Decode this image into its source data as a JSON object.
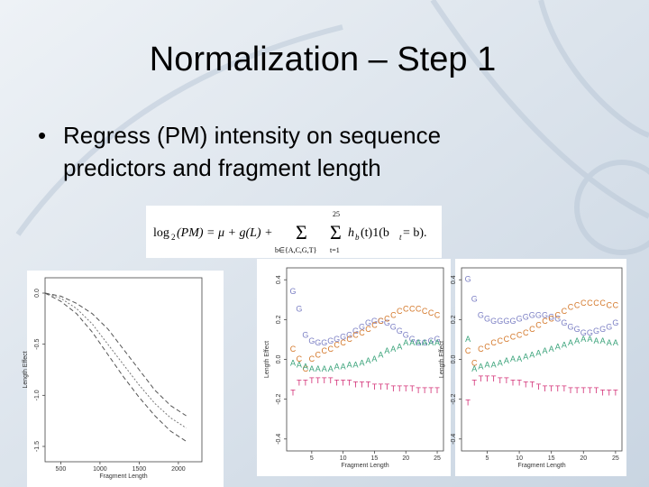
{
  "slide": {
    "title": "Normalization – Step 1",
    "bullet": "•",
    "bullet_lines": [
      "Regress (PM) intensity on sequence",
      "predictors and fragment length"
    ]
  },
  "formula": {
    "parts": [
      "log",
      "2",
      "(PM) = μ + g(L) +",
      "Σ",
      "b∈{A,C,G,T}",
      "Σ",
      "t=1",
      "25",
      "h",
      "b",
      "(t)1(b",
      "t",
      " = b)."
    ]
  },
  "chart_data": [
    {
      "type": "line",
      "x_label": "Fragment Length",
      "y_label": "Length Effect",
      "x": [
        300,
        500,
        700,
        900,
        1100,
        1300,
        1500,
        1700,
        1900,
        2100
      ],
      "xlim": [
        300,
        2300
      ],
      "ylim": [
        -1.65,
        0.15
      ],
      "xticks": [
        500,
        1000,
        1500,
        2000
      ],
      "yticks": [
        {
          "value": 0,
          "label": "0.0"
        },
        {
          "value": -0.5,
          "label": "-0.5"
        },
        {
          "value": -1,
          "label": "-1.0"
        },
        {
          "value": -1.5,
          "label": "-1.5"
        }
      ],
      "series": [
        {
          "color": "#555555",
          "values": [
            0,
            -0.03,
            -0.1,
            -0.2,
            -0.35,
            -0.55,
            -0.75,
            -0.95,
            -1.1,
            -1.2
          ]
        },
        {
          "color": "#777777",
          "values": [
            0,
            -0.05,
            -0.15,
            -0.3,
            -0.5,
            -0.7,
            -0.9,
            -1.08,
            -1.22,
            -1.32
          ]
        },
        {
          "color": "#555555",
          "values": [
            0,
            -0.08,
            -0.2,
            -0.38,
            -0.6,
            -0.82,
            -1.02,
            -1.2,
            -1.35,
            -1.45
          ]
        }
      ]
    },
    {
      "type": "letters",
      "x_label": "Fragment Length",
      "y_label": "Length Effect",
      "x": [
        2,
        3,
        4,
        5,
        6,
        7,
        8,
        9,
        10,
        11,
        12,
        13,
        14,
        15,
        16,
        17,
        18,
        19,
        20,
        21,
        22,
        23,
        24,
        25
      ],
      "xlim": [
        1,
        26
      ],
      "ylim": [
        -0.46,
        0.46
      ],
      "xticks": [
        5,
        10,
        15,
        20,
        25
      ],
      "yticks": [
        -0.4,
        -0.2,
        {
          "value": 0,
          "label": "0.0"
        },
        0.2,
        0.4
      ],
      "series": [
        {
          "name": "G",
          "color": "#7b7fc4",
          "values": [
            0.34,
            0.25,
            0.12,
            0.09,
            0.08,
            0.08,
            0.09,
            0.1,
            0.11,
            0.12,
            0.14,
            0.16,
            0.18,
            0.19,
            0.19,
            0.18,
            0.16,
            0.14,
            0.12,
            0.1,
            0.08,
            0.08,
            0.09,
            0.1
          ]
        },
        {
          "name": "C",
          "color": "#d4782a",
          "values": [
            0.05,
            0,
            -0.05,
            0,
            0.02,
            0.04,
            0.05,
            0.07,
            0.08,
            0.1,
            0.12,
            0.13,
            0.15,
            0.17,
            0.19,
            0.2,
            0.22,
            0.24,
            0.25,
            0.25,
            0.25,
            0.24,
            0.23,
            0.22
          ]
        },
        {
          "name": "A",
          "color": "#3aa37a",
          "values": [
            -0.02,
            -0.03,
            -0.04,
            -0.05,
            -0.05,
            -0.05,
            -0.05,
            -0.04,
            -0.04,
            -0.03,
            -0.03,
            -0.02,
            -0.01,
            0,
            0.02,
            0.04,
            0.05,
            0.06,
            0.08,
            0.08,
            0.08,
            0.08,
            0.08,
            0.08
          ]
        },
        {
          "name": "T",
          "color": "#d4357a",
          "values": [
            -0.17,
            -0.12,
            -0.12,
            -0.11,
            -0.11,
            -0.11,
            -0.11,
            -0.12,
            -0.12,
            -0.12,
            -0.13,
            -0.13,
            -0.13,
            -0.14,
            -0.14,
            -0.14,
            -0.15,
            -0.15,
            -0.15,
            -0.15,
            -0.16,
            -0.16,
            -0.16,
            -0.16
          ]
        }
      ]
    },
    {
      "type": "letters",
      "x_label": "Fragment Length",
      "y_label": "Length Effect",
      "x": [
        2,
        3,
        4,
        5,
        6,
        7,
        8,
        9,
        10,
        11,
        12,
        13,
        14,
        15,
        16,
        17,
        18,
        19,
        20,
        21,
        22,
        23,
        24,
        25
      ],
      "xlim": [
        1,
        26
      ],
      "ylim": [
        -0.46,
        0.46
      ],
      "xticks": [
        5,
        10,
        15,
        20,
        25
      ],
      "yticks": [
        -0.4,
        -0.2,
        {
          "value": 0,
          "label": "0.0"
        },
        0.2,
        0.4
      ],
      "series": [
        {
          "name": "G",
          "color": "#7b7fc4",
          "values": [
            0.4,
            0.3,
            0.22,
            0.2,
            0.19,
            0.19,
            0.19,
            0.19,
            0.2,
            0.21,
            0.22,
            0.22,
            0.22,
            0.21,
            0.2,
            0.18,
            0.16,
            0.15,
            0.13,
            0.13,
            0.14,
            0.15,
            0.16,
            0.18
          ]
        },
        {
          "name": "C",
          "color": "#d4782a",
          "values": [
            0.04,
            -0.02,
            0.05,
            0.06,
            0.08,
            0.09,
            0.1,
            0.11,
            0.12,
            0.13,
            0.15,
            0.17,
            0.19,
            0.2,
            0.22,
            0.24,
            0.26,
            0.27,
            0.28,
            0.28,
            0.28,
            0.28,
            0.27,
            0.27
          ]
        },
        {
          "name": "A",
          "color": "#3aa37a",
          "values": [
            0.1,
            -0.05,
            -0.04,
            -0.03,
            -0.03,
            -0.02,
            -0.01,
            0,
            0,
            0.01,
            0.02,
            0.03,
            0.04,
            0.05,
            0.06,
            0.07,
            0.08,
            0.09,
            0.1,
            0.1,
            0.09,
            0.09,
            0.08,
            0.08
          ]
        },
        {
          "name": "T",
          "color": "#d4357a",
          "values": [
            -0.22,
            -0.12,
            -0.1,
            -0.1,
            -0.1,
            -0.11,
            -0.11,
            -0.12,
            -0.12,
            -0.13,
            -0.13,
            -0.14,
            -0.15,
            -0.15,
            -0.15,
            -0.15,
            -0.16,
            -0.16,
            -0.16,
            -0.16,
            -0.16,
            -0.17,
            -0.17,
            -0.17
          ]
        }
      ]
    }
  ]
}
